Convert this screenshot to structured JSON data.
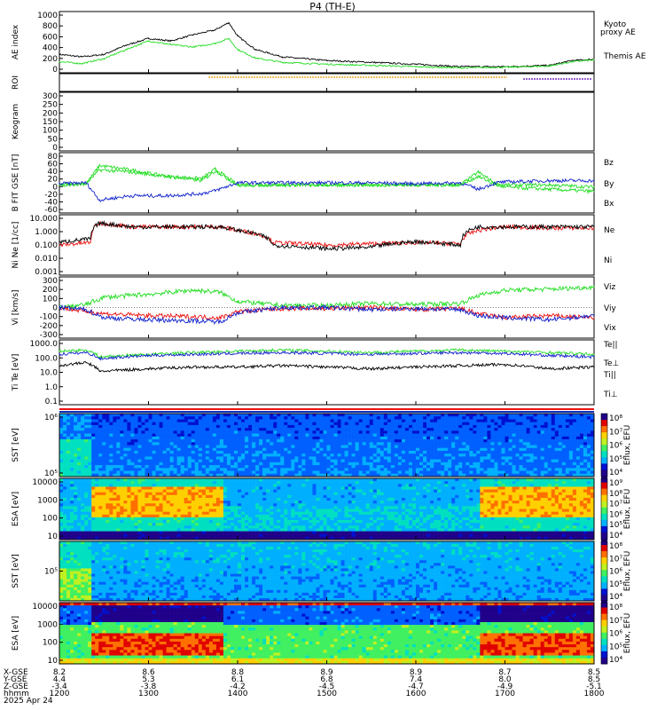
{
  "title": "P4 (TH-E)",
  "date_label": "2025 Apr 24",
  "colors": {
    "black": "#000000",
    "green": "#22dd22",
    "red": "#ee1111",
    "blue": "#1122cc",
    "orange": "#ee9900",
    "purple": "#5500aa"
  },
  "chart_data": [
    {
      "type": "line",
      "id": "ae",
      "ylabel": "AE index",
      "yticks": [
        "1000",
        "800",
        "600",
        "400",
        "200",
        "0"
      ],
      "ylim": [
        0,
        1000
      ],
      "legend": [
        "Kyoto",
        "proxy AE",
        "Themis AE"
      ],
      "x": [
        12.0,
        12.25,
        12.5,
        12.75,
        13.0,
        13.25,
        13.5,
        13.75,
        13.9,
        14.0,
        14.2,
        14.5,
        15.0,
        15.5,
        16.0,
        16.5,
        17.0,
        17.5,
        17.75,
        18.0
      ],
      "series": [
        {
          "name": "Themis AE",
          "values": [
            300,
            260,
            300,
            450,
            560,
            520,
            620,
            700,
            820,
            600,
            380,
            260,
            200,
            170,
            140,
            100,
            100,
            120,
            200,
            220
          ]
        },
        {
          "name": "Kyoto proxy AE",
          "values": [
            180,
            150,
            230,
            380,
            520,
            460,
            420,
            480,
            560,
            380,
            240,
            170,
            140,
            120,
            100,
            80,
            90,
            110,
            180,
            210
          ]
        }
      ]
    },
    {
      "type": "line",
      "id": "roi",
      "ylabel": "ROI",
      "yticks": []
    },
    {
      "type": "line",
      "id": "keo",
      "ylabel": "Keogram",
      "yticks": [
        "300",
        "250",
        "200",
        "150",
        "100",
        "50",
        "0"
      ],
      "ylim": [
        0,
        300
      ]
    },
    {
      "type": "line",
      "id": "bfield",
      "ylabel": "B FIT GSE [nT]",
      "yticks": [
        "80",
        "60",
        "40",
        "20",
        "0",
        "-20",
        "-40",
        "-60"
      ],
      "ylim": [
        -60,
        80
      ],
      "legend": [
        "Bz",
        "By",
        "Bx"
      ],
      "x": [
        12.0,
        12.3,
        12.45,
        12.8,
        13.2,
        13.6,
        13.75,
        14.0,
        14.5,
        15.0,
        15.5,
        16.0,
        16.5,
        16.7,
        16.9,
        17.0,
        17.5,
        18.0
      ],
      "series": [
        {
          "name": "Bz",
          "values": [
            5,
            8,
            50,
            40,
            25,
            20,
            42,
            5,
            5,
            5,
            5,
            5,
            5,
            35,
            8,
            5,
            5,
            0
          ]
        },
        {
          "name": "By",
          "values": [
            5,
            8,
            40,
            35,
            25,
            15,
            38,
            5,
            5,
            5,
            5,
            5,
            5,
            25,
            5,
            0,
            -5,
            -10
          ]
        },
        {
          "name": "Bx",
          "values": [
            8,
            10,
            -30,
            -20,
            -20,
            -15,
            -8,
            10,
            10,
            10,
            10,
            8,
            10,
            -5,
            10,
            12,
            15,
            15
          ]
        }
      ]
    },
    {
      "type": "line",
      "id": "dens",
      "ylabel": "Ni Ne [1/cc]",
      "yticks": [
        "10.000",
        "1.000",
        "0.100",
        "0.010",
        "0.001"
      ],
      "ylim": [
        0.001,
        100
      ],
      "scale": "log",
      "legend": [
        "Ne",
        "Ni"
      ],
      "x": [
        12.0,
        12.35,
        12.45,
        12.8,
        13.2,
        13.6,
        13.8,
        14.0,
        14.4,
        15.0,
        15.5,
        16.0,
        16.5,
        16.7,
        17.0,
        17.5,
        18.0
      ],
      "series": [
        {
          "name": "Ne",
          "values": [
            0.3,
            0.5,
            20,
            10,
            10,
            10,
            10,
            5,
            0.5,
            0.3,
            0.4,
            0.5,
            0.4,
            5,
            10,
            8,
            8
          ]
        },
        {
          "name": "Ni",
          "values": [
            0.5,
            1.0,
            20,
            10,
            10,
            10,
            10,
            5,
            0.3,
            0.15,
            0.2,
            0.6,
            0.3,
            10,
            10,
            10,
            10
          ]
        }
      ]
    },
    {
      "type": "line",
      "id": "vel",
      "ylabel": "Vi [km/s]",
      "yticks": [
        "300",
        "200",
        "100",
        "0",
        "-100",
        "-200",
        "-300"
      ],
      "ylim": [
        -300,
        300
      ],
      "legend": [
        "Viz",
        "Viy",
        "Vix"
      ],
      "x": [
        12.0,
        12.3,
        12.5,
        13.0,
        13.5,
        13.8,
        14.0,
        14.5,
        15.0,
        15.5,
        16.0,
        16.5,
        16.7,
        17.0,
        17.5,
        18.0
      ],
      "series": [
        {
          "name": "Viz",
          "values": [
            0,
            30,
            100,
            130,
            170,
            150,
            60,
            20,
            20,
            40,
            30,
            40,
            120,
            170,
            180,
            200
          ]
        },
        {
          "name": "Viy",
          "values": [
            0,
            -40,
            -60,
            -80,
            -90,
            -100,
            -40,
            -10,
            -10,
            0,
            -20,
            -10,
            -60,
            -100,
            -80,
            -100
          ]
        },
        {
          "name": "Vix",
          "values": [
            0,
            -20,
            -100,
            -120,
            -130,
            -140,
            -50,
            0,
            0,
            -20,
            -10,
            -20,
            -80,
            -100,
            -120,
            -80
          ]
        }
      ]
    },
    {
      "type": "line",
      "id": "temp",
      "ylabel": "Ti Te [eV]",
      "yticks": [
        "1000.0",
        "100.0",
        "10.0",
        "1.0",
        "0.1"
      ],
      "ylim": [
        0.1,
        3000
      ],
      "scale": "log",
      "legend": [
        "Te||",
        "Te⊥",
        "Ti||",
        "Ti⊥"
      ],
      "x": [
        12.0,
        12.3,
        12.45,
        13.0,
        13.5,
        14.0,
        14.5,
        15.0,
        15.5,
        16.0,
        16.5,
        17.0,
        17.5,
        18.0
      ],
      "series": [
        {
          "name": "Ti||",
          "values": [
            500,
            600,
            200,
            300,
            400,
            500,
            600,
            500,
            400,
            500,
            600,
            500,
            400,
            300
          ]
        },
        {
          "name": "Ti⊥",
          "values": [
            300,
            400,
            150,
            250,
            300,
            350,
            400,
            350,
            300,
            350,
            400,
            350,
            250,
            200
          ]
        },
        {
          "name": "Te||",
          "values": [
            50,
            80,
            20,
            30,
            40,
            40,
            50,
            40,
            30,
            40,
            50,
            60,
            30,
            40
          ]
        }
      ]
    },
    {
      "type": "heatmap",
      "id": "sst_e",
      "ylabel": "SST [eV]",
      "yticks": [
        "10⁶",
        "10⁵"
      ],
      "colorbar": [
        "10⁸",
        "10⁷",
        "10⁶",
        "10⁵",
        "10⁴"
      ],
      "zlabel": "Eflux, EFU"
    },
    {
      "type": "heatmap",
      "id": "esa_e",
      "ylabel": "ESA [eV]",
      "yticks": [
        "10000",
        "1000",
        "100",
        "10"
      ],
      "colorbar": [
        "10⁹",
        "10⁸",
        "10⁷",
        "10⁶",
        "10⁵",
        "10⁴"
      ],
      "zlabel": "Eflux, EFU"
    },
    {
      "type": "heatmap",
      "id": "sst_i",
      "ylabel": "SST [eV]",
      "yticks": [
        "10⁵"
      ],
      "colorbar": [
        "10⁸",
        "10⁷",
        "10⁶",
        "10⁵",
        "10⁴"
      ],
      "zlabel": "Eflux, EFU"
    },
    {
      "type": "heatmap",
      "id": "esa_i",
      "ylabel": "ESA [eV]",
      "yticks": [
        "10000",
        "1000",
        "100",
        "10"
      ],
      "colorbar": [
        "10⁸",
        "10⁷",
        "10⁶",
        "10⁵",
        "10⁴"
      ],
      "zlabel": "Eflux, EFU"
    }
  ],
  "xaxis": {
    "row_labels": [
      "X-GSE",
      "Y-GSE",
      "Z-GSE",
      "hhmm"
    ],
    "columns": [
      {
        "x": [
          "8.2",
          "4.4",
          "-3.4",
          "1200"
        ]
      },
      {
        "x": [
          "8.6",
          "5.3",
          "-3.8",
          "1300"
        ]
      },
      {
        "x": [
          "8.8",
          "6.1",
          "-4.2",
          "1400"
        ]
      },
      {
        "x": [
          "8.9",
          "6.8",
          "-4.5",
          "1500"
        ]
      },
      {
        "x": [
          "8.9",
          "7.4",
          "-4.7",
          "1600"
        ]
      },
      {
        "x": [
          "8.7",
          "8.0",
          "-4.9",
          "1700"
        ]
      },
      {
        "x": [
          "8.5",
          "8.5",
          "-5.1",
          "1800"
        ]
      }
    ]
  }
}
